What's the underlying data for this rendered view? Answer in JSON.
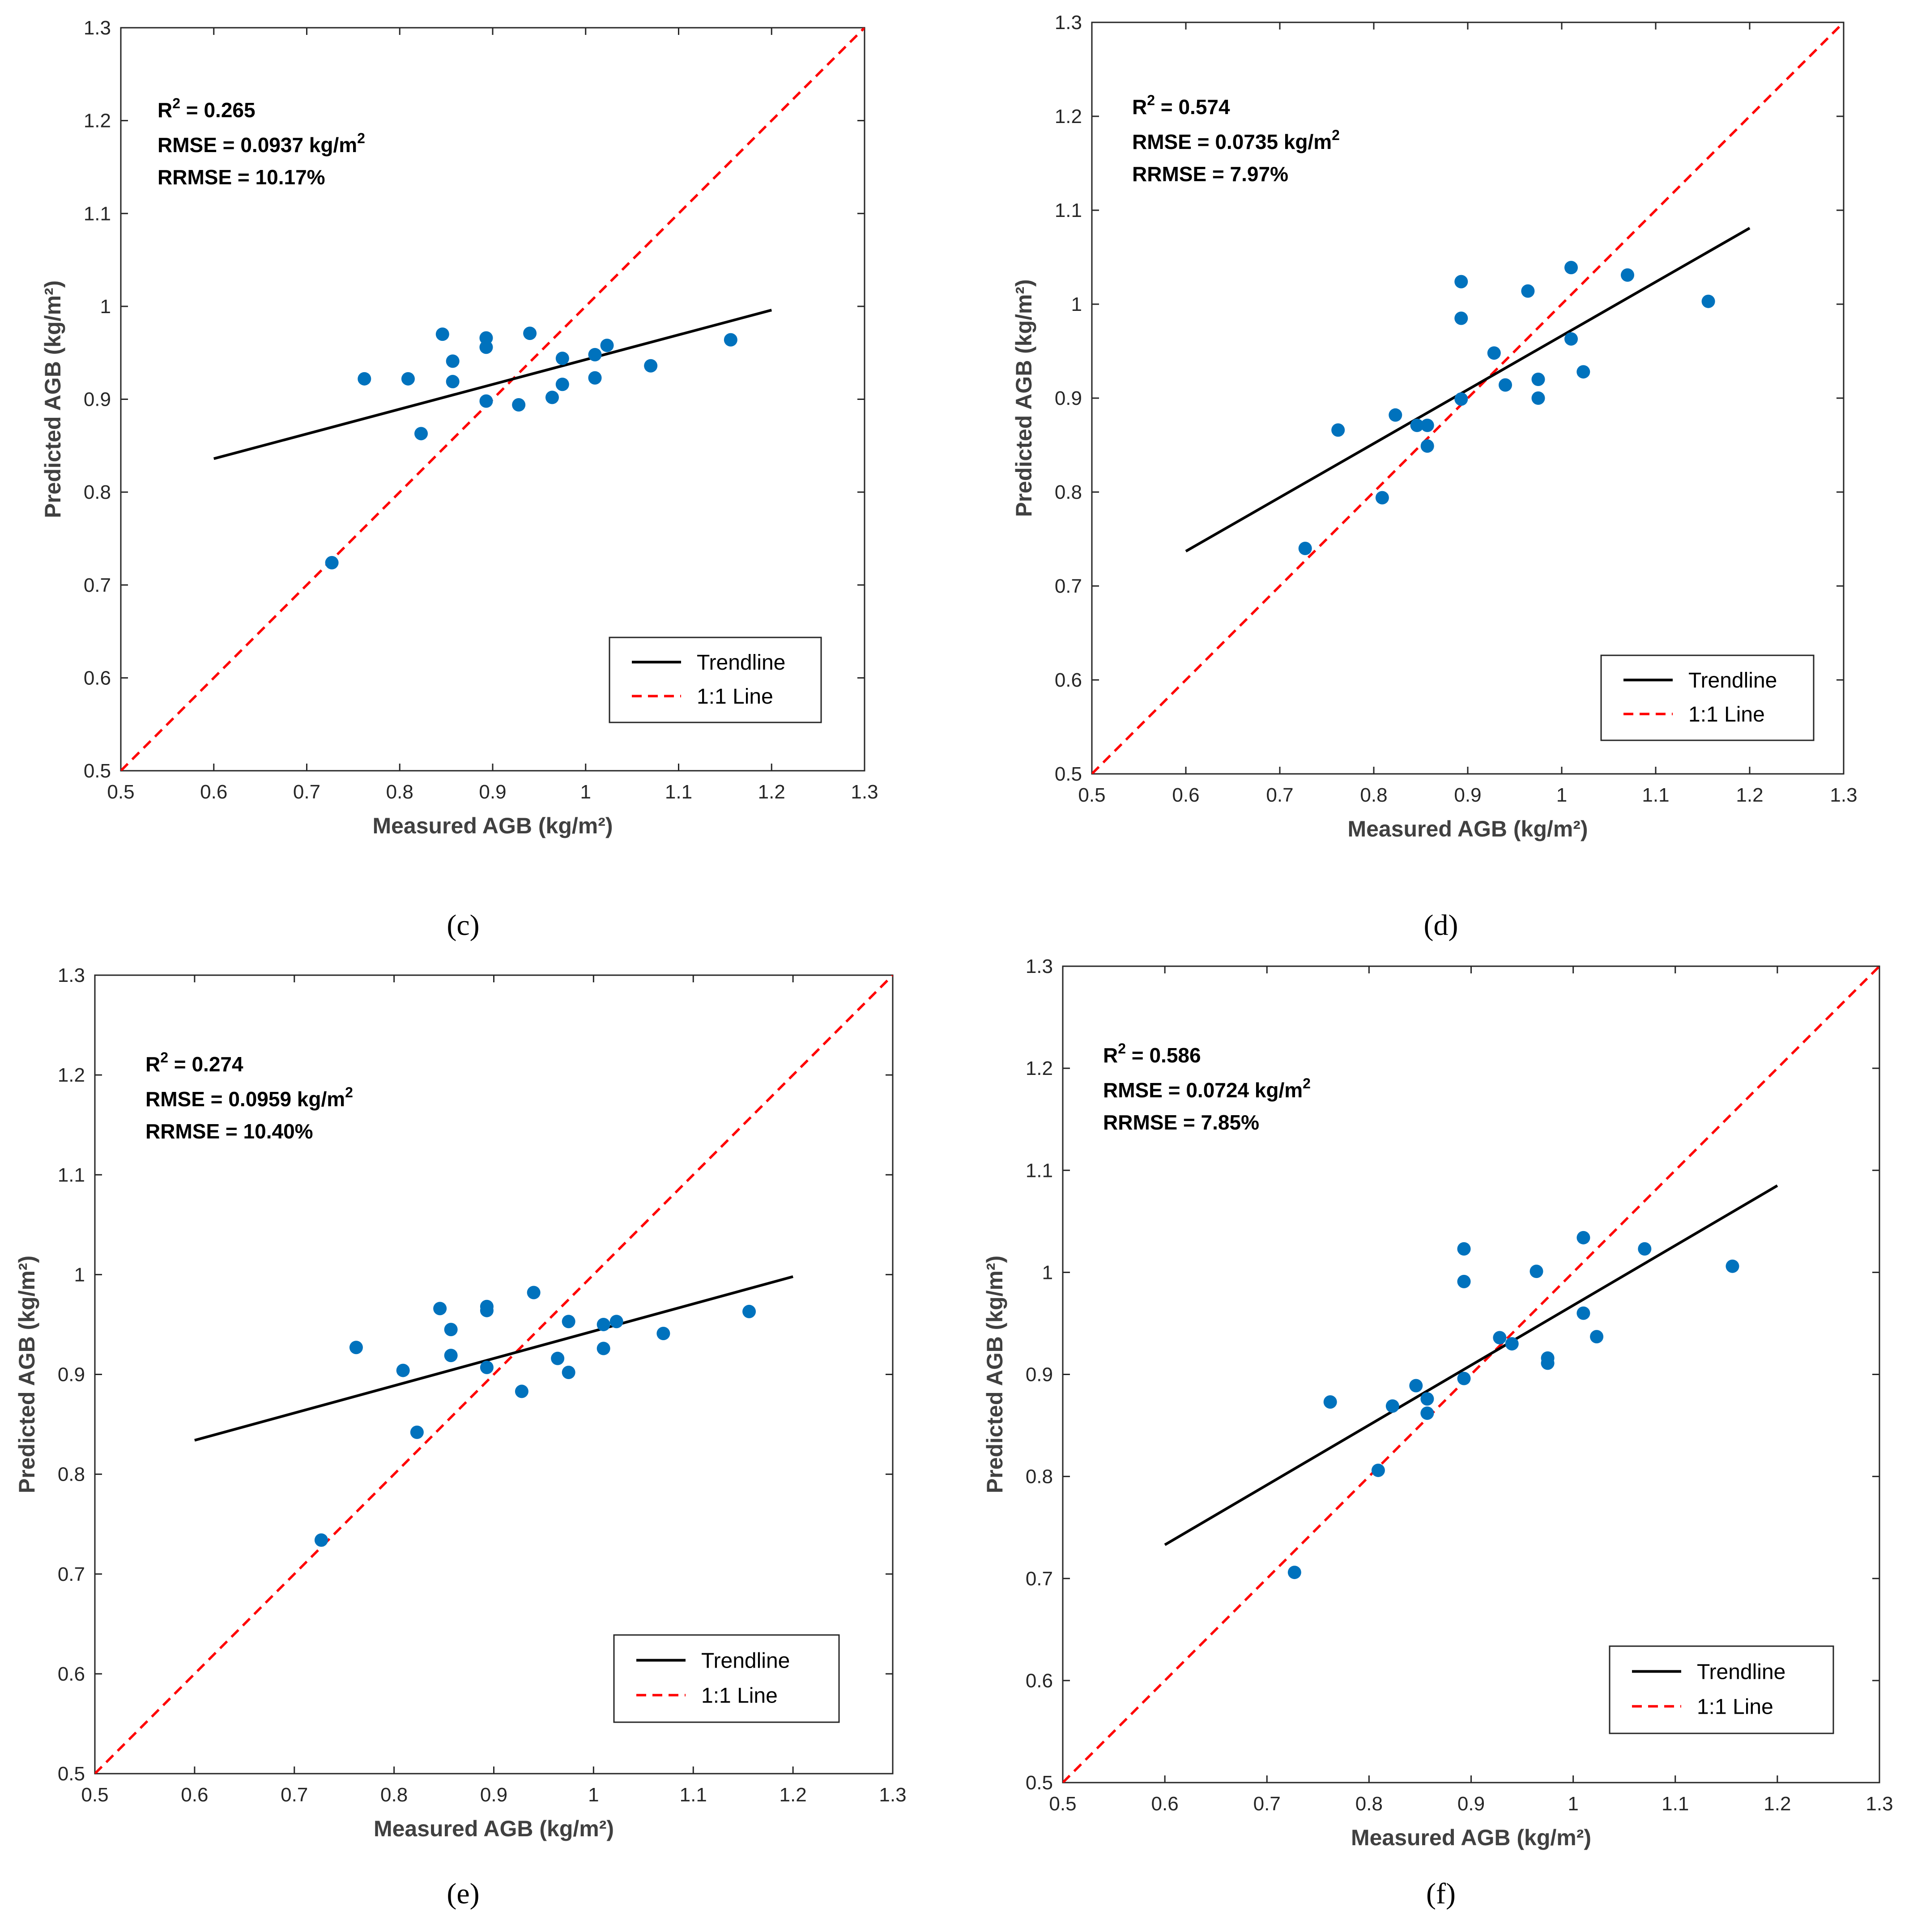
{
  "colors": {
    "points": "#0072BD",
    "trendline": "#000000",
    "oneToOne": "#FF0000",
    "axis": "#262626"
  },
  "legend": {
    "trend_label": "Trendline",
    "one_to_one_label": "1:1 Line"
  },
  "chart_data": [
    {
      "id": "c",
      "caption": "(c)",
      "type": "scatter",
      "xlabel": "Measured AGB  (kg/m²)",
      "ylabel": "Predicted AGB (kg/m²)",
      "xlim": [
        0.5,
        1.3
      ],
      "ylim": [
        0.5,
        1.3
      ],
      "xticks": [
        "0.5",
        "0.6",
        "0.7",
        "0.8",
        "0.9",
        "1",
        "1.1",
        "1.2",
        "1.3"
      ],
      "yticks": [
        "0.5",
        "0.6",
        "0.7",
        "0.8",
        "0.9",
        "1",
        "1.1",
        "1.2",
        "1.3"
      ],
      "stats": {
        "r2_prefix": "R",
        "r2_sup": "2",
        "r2_value": " = 0.265",
        "rmse_text": "RMSE = 0.0937 kg/m",
        "rmse_sup": "2",
        "rrmse_text": "RRMSE = 10.17%"
      },
      "trendline": {
        "x": [
          0.6,
          1.2
        ],
        "y": [
          0.836,
          0.996
        ]
      },
      "points": [
        [
          0.727,
          0.724
        ],
        [
          0.762,
          0.922
        ],
        [
          0.809,
          0.922
        ],
        [
          0.823,
          0.863
        ],
        [
          0.846,
          0.97
        ],
        [
          0.857,
          0.941
        ],
        [
          0.857,
          0.919
        ],
        [
          0.893,
          0.966
        ],
        [
          0.893,
          0.956
        ],
        [
          0.893,
          0.898
        ],
        [
          0.928,
          0.894
        ],
        [
          0.94,
          0.971
        ],
        [
          0.964,
          0.902
        ],
        [
          0.975,
          0.944
        ],
        [
          0.975,
          0.916
        ],
        [
          1.01,
          0.948
        ],
        [
          1.01,
          0.923
        ],
        [
          1.023,
          0.958
        ],
        [
          1.07,
          0.936
        ],
        [
          1.156,
          0.964
        ]
      ]
    },
    {
      "id": "d",
      "caption": "(d)",
      "type": "scatter",
      "xlabel": "Measured AGB  (kg/m²)",
      "ylabel": "Predicted AGB (kg/m²)",
      "xlim": [
        0.5,
        1.3
      ],
      "ylim": [
        0.5,
        1.3
      ],
      "xticks": [
        "0.5",
        "0.6",
        "0.7",
        "0.8",
        "0.9",
        "1",
        "1.1",
        "1.2",
        "1.3"
      ],
      "yticks": [
        "0.5",
        "0.6",
        "0.7",
        "0.8",
        "0.9",
        "1",
        "1.1",
        "1.2",
        "1.3"
      ],
      "stats": {
        "r2_prefix": "R",
        "r2_sup": "2",
        "r2_value": " = 0.574",
        "rmse_text": "RMSE = 0.0735 kg/m",
        "rmse_sup": "2",
        "rrmse_text": "RRMSE = 7.97%"
      },
      "trendline": {
        "x": [
          0.6,
          1.2
        ],
        "y": [
          0.737,
          1.081
        ]
      },
      "points": [
        [
          0.727,
          0.74
        ],
        [
          0.762,
          0.866
        ],
        [
          0.809,
          0.794
        ],
        [
          0.823,
          0.882
        ],
        [
          0.846,
          0.871
        ],
        [
          0.857,
          0.871
        ],
        [
          0.857,
          0.849
        ],
        [
          0.893,
          1.024
        ],
        [
          0.893,
          0.985
        ],
        [
          0.893,
          0.899
        ],
        [
          0.928,
          0.948
        ],
        [
          0.94,
          0.914
        ],
        [
          0.964,
          1.014
        ],
        [
          0.975,
          0.92
        ],
        [
          0.975,
          0.9
        ],
        [
          1.01,
          1.039
        ],
        [
          1.01,
          0.963
        ],
        [
          1.023,
          0.928
        ],
        [
          1.07,
          1.031
        ],
        [
          1.156,
          1.003
        ]
      ]
    },
    {
      "id": "e",
      "caption": "(e)",
      "type": "scatter",
      "xlabel": "Measured AGB  (kg/m²)",
      "ylabel": "Predicted AGB (kg/m²)",
      "xlim": [
        0.5,
        1.3
      ],
      "ylim": [
        0.5,
        1.3
      ],
      "xticks": [
        "0.5",
        "0.6",
        "0.7",
        "0.8",
        "0.9",
        "1",
        "1.1",
        "1.2",
        "1.3"
      ],
      "yticks": [
        "0.5",
        "0.6",
        "0.7",
        "0.8",
        "0.9",
        "1",
        "1.1",
        "1.2",
        "1.3"
      ],
      "stats": {
        "r2_prefix": "R",
        "r2_sup": "2",
        "r2_value": " = 0.274",
        "rmse_text": "RMSE = 0.0959 kg/m",
        "rmse_sup": "2",
        "rrmse_text": "RRMSE = 10.40%"
      },
      "trendline": {
        "x": [
          0.6,
          1.2
        ],
        "y": [
          0.834,
          0.998
        ]
      },
      "points": [
        [
          0.727,
          0.734
        ],
        [
          0.762,
          0.927
        ],
        [
          0.809,
          0.904
        ],
        [
          0.823,
          0.842
        ],
        [
          0.846,
          0.966
        ],
        [
          0.857,
          0.945
        ],
        [
          0.857,
          0.919
        ],
        [
          0.893,
          0.968
        ],
        [
          0.893,
          0.964
        ],
        [
          0.893,
          0.907
        ],
        [
          0.928,
          0.883
        ],
        [
          0.94,
          0.982
        ],
        [
          0.964,
          0.916
        ],
        [
          0.975,
          0.953
        ],
        [
          0.975,
          0.902
        ],
        [
          1.01,
          0.95
        ],
        [
          1.01,
          0.926
        ],
        [
          1.023,
          0.953
        ],
        [
          1.07,
          0.941
        ],
        [
          1.156,
          0.963
        ]
      ]
    },
    {
      "id": "f",
      "caption": "(f)",
      "type": "scatter",
      "xlabel": "Measured AGB  (kg/m²)",
      "ylabel": "Predicted AGB (kg/m²)",
      "xlim": [
        0.5,
        1.3
      ],
      "ylim": [
        0.5,
        1.3
      ],
      "xticks": [
        "0.5",
        "0.6",
        "0.7",
        "0.8",
        "0.9",
        "1",
        "1.1",
        "1.2",
        "1.3"
      ],
      "yticks": [
        "0.5",
        "0.6",
        "0.7",
        "0.8",
        "0.9",
        "1",
        "1.1",
        "1.2",
        "1.3"
      ],
      "stats": {
        "r2_prefix": "R",
        "r2_sup": "2",
        "r2_value": " = 0.586",
        "rmse_text": "RMSE = 0.0724 kg/m",
        "rmse_sup": "2",
        "rrmse_text": "RRMSE = 7.85%"
      },
      "trendline": {
        "x": [
          0.6,
          1.2
        ],
        "y": [
          0.733,
          1.085
        ]
      },
      "points": [
        [
          0.727,
          0.706
        ],
        [
          0.762,
          0.873
        ],
        [
          0.809,
          0.806
        ],
        [
          0.823,
          0.869
        ],
        [
          0.846,
          0.889
        ],
        [
          0.857,
          0.876
        ],
        [
          0.857,
          0.862
        ],
        [
          0.893,
          1.023
        ],
        [
          0.893,
          0.991
        ],
        [
          0.893,
          0.896
        ],
        [
          0.928,
          0.936
        ],
        [
          0.94,
          0.93
        ],
        [
          0.964,
          1.001
        ],
        [
          0.975,
          0.916
        ],
        [
          0.975,
          0.911
        ],
        [
          1.01,
          1.034
        ],
        [
          1.01,
          0.96
        ],
        [
          1.023,
          0.937
        ],
        [
          1.07,
          1.023
        ],
        [
          1.156,
          1.006
        ]
      ]
    }
  ]
}
